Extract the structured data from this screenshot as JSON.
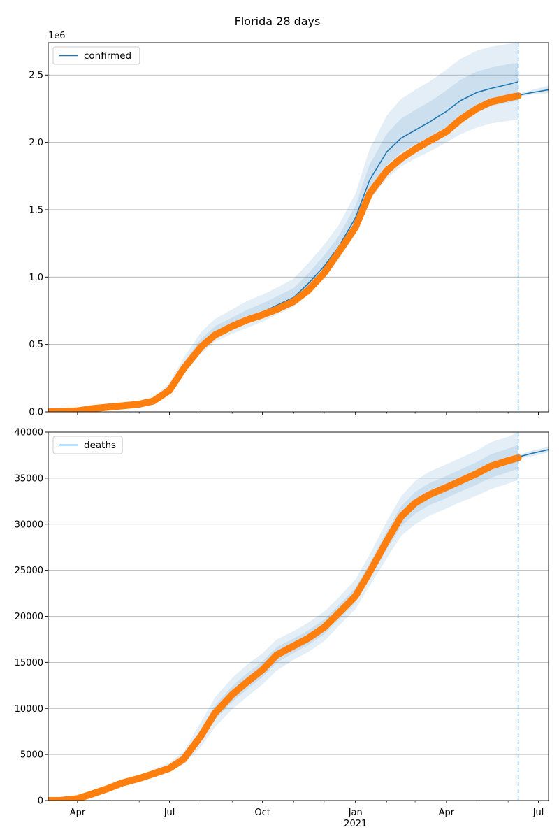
{
  "chart_data": {
    "type": "line",
    "title": "Florida 28 days",
    "x_tick_labels": [
      "Apr",
      "Jul",
      "Oct",
      "Jan",
      "Apr",
      "Jul"
    ],
    "x_year_label": "2021",
    "x_ticks": [
      "2020-04-01",
      "2020-07-01",
      "2020-10-01",
      "2021-01-01",
      "2021-04-01",
      "2021-07-01"
    ],
    "x_range": [
      "2020-03-03",
      "2021-07-11"
    ],
    "forecast_start": "2021-06-11",
    "colors": {
      "model": "#1f77b4",
      "observed": "#ff7f0e",
      "band": "#1f77b4",
      "grid": "#b0b0b0"
    },
    "panels": [
      {
        "legend": "confirmed",
        "legend_position": "upper-left",
        "y_range": [
          0,
          2740000
        ],
        "y_offset_label": "1e6",
        "y_ticks": [
          0,
          500000,
          1000000,
          1500000,
          2000000,
          2500000
        ],
        "y_tick_labels": [
          "0.0",
          "0.5",
          "1.0",
          "1.5",
          "2.0",
          "2.5"
        ],
        "grid": true,
        "model": {
          "x": [
            "2020-06-15",
            "2020-07-01",
            "2020-07-15",
            "2020-08-01",
            "2020-08-15",
            "2020-09-01",
            "2020-09-15",
            "2020-10-01",
            "2020-10-15",
            "2020-11-01",
            "2020-11-15",
            "2020-12-01",
            "2020-12-15",
            "2021-01-01",
            "2021-01-15",
            "2021-02-01",
            "2021-02-15",
            "2021-03-01",
            "2021-03-15",
            "2021-04-01",
            "2021-04-15",
            "2021-05-01",
            "2021-05-15",
            "2021-06-01",
            "2021-06-11"
          ],
          "y": [
            90000,
            180000,
            330000,
            490000,
            580000,
            640000,
            690000,
            740000,
            790000,
            850000,
            950000,
            1080000,
            1220000,
            1440000,
            1720000,
            1930000,
            2030000,
            2090000,
            2150000,
            2230000,
            2310000,
            2370000,
            2400000,
            2430000,
            2450000
          ],
          "bands": [
            {
              "lower": [
                80000,
                160000,
                290000,
                430000,
                520000,
                580000,
                620000,
                670000,
                720000,
                780000,
                880000,
                1000000,
                1130000,
                1320000,
                1570000,
                1730000,
                1820000,
                1880000,
                1930000,
                2000000,
                2060000,
                2110000,
                2140000,
                2160000,
                2170000
              ],
              "upper": [
                110000,
                215000,
                400000,
                590000,
                690000,
                760000,
                820000,
                870000,
                920000,
                990000,
                1100000,
                1240000,
                1380000,
                1620000,
                1950000,
                2200000,
                2320000,
                2390000,
                2450000,
                2540000,
                2620000,
                2680000,
                2710000,
                2730000,
                2740000
              ]
            },
            {
              "lower": [
                85000,
                170000,
                310000,
                460000,
                550000,
                610000,
                655000,
                705000,
                755000,
                815000,
                915000,
                1040000,
                1175000,
                1380000,
                1645000,
                1830000,
                1925000,
                1985000,
                2040000,
                2115000,
                2185000,
                2240000,
                2270000,
                2295000,
                2310000
              ],
              "upper": [
                100000,
                198000,
                365000,
                540000,
                635000,
                700000,
                755000,
                805000,
                855000,
                920000,
                1025000,
                1160000,
                1300000,
                1530000,
                1835000,
                2065000,
                2175000,
                2240000,
                2300000,
                2385000,
                2465000,
                2525000,
                2555000,
                2580000,
                2590000
              ]
            }
          ]
        },
        "forecast": {
          "x": [
            "2021-06-11",
            "2021-06-25",
            "2021-07-11"
          ],
          "y": [
            2350000,
            2370000,
            2390000
          ],
          "upper": [
            2360000,
            2390000,
            2420000
          ],
          "lower": [
            2340000,
            2355000,
            2365000
          ]
        },
        "observed": {
          "x": [
            "2020-03-03",
            "2020-03-15",
            "2020-04-01",
            "2020-04-15",
            "2020-05-01",
            "2020-05-15",
            "2020-06-01",
            "2020-06-15",
            "2020-07-01",
            "2020-07-15",
            "2020-08-01",
            "2020-08-15",
            "2020-09-01",
            "2020-09-15",
            "2020-10-01",
            "2020-10-15",
            "2020-11-01",
            "2020-11-15",
            "2020-12-01",
            "2020-12-15",
            "2021-01-01",
            "2021-01-15",
            "2021-02-01",
            "2021-02-15",
            "2021-03-01",
            "2021-03-15",
            "2021-04-01",
            "2021-04-15",
            "2021-05-01",
            "2021-05-15",
            "2021-06-01",
            "2021-06-11"
          ],
          "y": [
            0,
            1000,
            7000,
            23000,
            35000,
            44000,
            57000,
            80000,
            160000,
            320000,
            480000,
            570000,
            635000,
            680000,
            720000,
            760000,
            820000,
            900000,
            1030000,
            1180000,
            1370000,
            1620000,
            1790000,
            1880000,
            1950000,
            2010000,
            2080000,
            2170000,
            2250000,
            2300000,
            2330000,
            2345000
          ]
        }
      },
      {
        "legend": "deaths",
        "legend_position": "upper-left",
        "y_range": [
          0,
          40000
        ],
        "y_ticks": [
          0,
          5000,
          10000,
          15000,
          20000,
          25000,
          30000,
          35000,
          40000
        ],
        "y_tick_labels": [
          "0",
          "5000",
          "10000",
          "15000",
          "20000",
          "25000",
          "30000",
          "35000",
          "40000"
        ],
        "grid": true,
        "model": {
          "x": [
            "2020-06-15",
            "2020-07-01",
            "2020-07-15",
            "2020-08-01",
            "2020-08-15",
            "2020-09-01",
            "2020-09-15",
            "2020-10-01",
            "2020-10-15",
            "2020-11-01",
            "2020-11-15",
            "2020-12-01",
            "2020-12-15",
            "2021-01-01",
            "2021-01-15",
            "2021-02-01",
            "2021-02-15",
            "2021-03-01",
            "2021-03-15",
            "2021-04-01",
            "2021-04-15",
            "2021-05-01",
            "2021-05-15",
            "2021-06-01",
            "2021-06-11"
          ],
          "y": [
            3000,
            3600,
            4500,
            7000,
            9500,
            11500,
            12800,
            14200,
            15800,
            16800,
            17600,
            18800,
            20300,
            22200,
            24800,
            28200,
            30800,
            32300,
            33200,
            34000,
            34700,
            35500,
            36300,
            36900,
            37200
          ],
          "bands": [
            {
              "lower": [
                2700,
                3200,
                3900,
                5800,
                8000,
                9900,
                11200,
                12600,
                14100,
                15300,
                16100,
                17300,
                18900,
                20800,
                23300,
                26300,
                28700,
                30000,
                30900,
                31700,
                32400,
                33100,
                33800,
                34400,
                34800
              ],
              "upper": [
                3400,
                4100,
                5300,
                8500,
                11200,
                13300,
                14700,
                16000,
                17500,
                18400,
                19300,
                20500,
                22000,
                24000,
                26700,
                30300,
                33000,
                34700,
                35700,
                36500,
                37200,
                38000,
                38900,
                39500,
                40000
              ]
            },
            {
              "lower": [
                2850,
                3400,
                4200,
                6400,
                8800,
                10700,
                12000,
                13400,
                14950,
                16050,
                16850,
                18050,
                19600,
                21500,
                24050,
                27250,
                29750,
                31150,
                32050,
                32850,
                33550,
                34300,
                35050,
                35650,
                36000
              ],
              "upper": [
                3200,
                3850,
                4900,
                7750,
                10350,
                12400,
                13750,
                15100,
                16650,
                17600,
                18450,
                19650,
                21150,
                23100,
                25750,
                29250,
                31900,
                33500,
                34450,
                35250,
                35950,
                36750,
                37600,
                38200,
                38600
              ]
            }
          ]
        },
        "forecast": {
          "x": [
            "2021-06-11",
            "2021-06-25",
            "2021-07-11"
          ],
          "y": [
            37300,
            37700,
            38100
          ],
          "upper": [
            37500,
            38000,
            38400
          ],
          "lower": [
            37100,
            37400,
            37800
          ]
        },
        "observed": {
          "x": [
            "2020-03-03",
            "2020-03-15",
            "2020-04-01",
            "2020-04-15",
            "2020-05-01",
            "2020-05-15",
            "2020-06-01",
            "2020-06-15",
            "2020-07-01",
            "2020-07-15",
            "2020-08-01",
            "2020-08-15",
            "2020-09-01",
            "2020-09-15",
            "2020-10-01",
            "2020-10-15",
            "2020-11-01",
            "2020-11-15",
            "2020-12-01",
            "2020-12-15",
            "2021-01-01",
            "2021-01-15",
            "2021-02-01",
            "2021-02-15",
            "2021-03-01",
            "2021-03-15",
            "2021-04-01",
            "2021-04-15",
            "2021-05-01",
            "2021-05-15",
            "2021-06-01",
            "2021-06-11"
          ],
          "y": [
            0,
            10,
            200,
            700,
            1300,
            1900,
            2400,
            2900,
            3500,
            4500,
            7000,
            9500,
            11500,
            12800,
            14200,
            15800,
            16800,
            17600,
            18800,
            20300,
            22200,
            24800,
            28200,
            30800,
            32300,
            33200,
            34000,
            34700,
            35500,
            36300,
            36900,
            37200
          ]
        }
      }
    ]
  }
}
